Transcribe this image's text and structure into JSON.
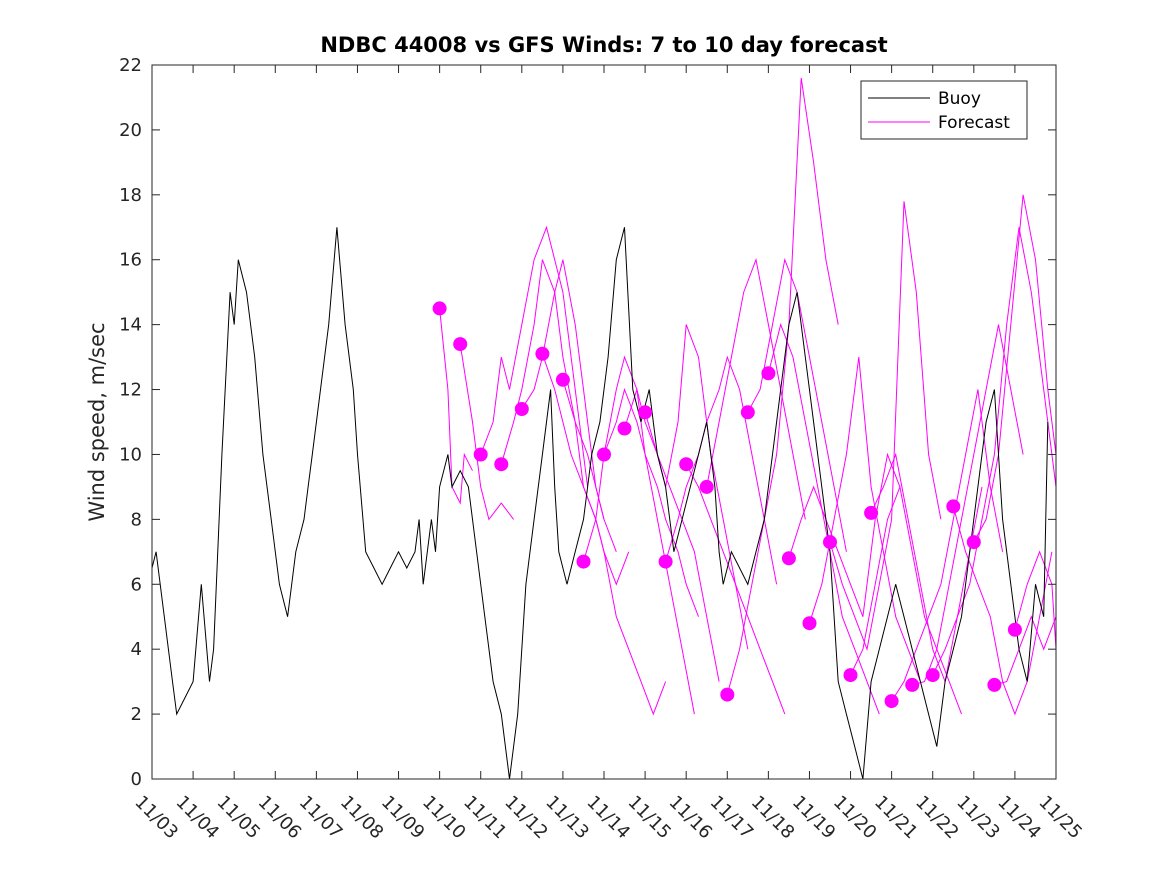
{
  "chart_data": {
    "type": "line",
    "title": "NDBC 44008 vs GFS Winds: 7 to 10 day forecast",
    "xlabel": "",
    "ylabel": "Wind speed, m/sec",
    "ylim": [
      0,
      22
    ],
    "xlim": [
      0,
      22
    ],
    "y_ticks": [
      0,
      2,
      4,
      6,
      8,
      10,
      12,
      14,
      16,
      18,
      20,
      22
    ],
    "x_ticks": [
      0,
      1,
      2,
      3,
      4,
      5,
      6,
      7,
      8,
      9,
      10,
      11,
      12,
      13,
      14,
      15,
      16,
      17,
      18,
      19,
      20,
      21,
      22
    ],
    "x_tick_labels": [
      "11/03",
      "11/04",
      "11/05",
      "11/06",
      "11/07",
      "11/08",
      "11/09",
      "11/10",
      "11/11",
      "11/12",
      "11/13",
      "11/14",
      "11/15",
      "11/16",
      "11/17",
      "11/18",
      "11/19",
      "11/20",
      "11/21",
      "11/22",
      "11/23",
      "11/24",
      "11/25"
    ],
    "colors": {
      "buoy": "#000000",
      "forecast": "#ff00ff",
      "axes": "#262626"
    },
    "legend": {
      "placement": "top-right",
      "entries": [
        "Buoy",
        "Forecast"
      ]
    },
    "series": [
      {
        "name": "Buoy",
        "x": [
          0,
          0.1,
          0.2,
          0.3,
          0.4,
          0.5,
          0.6,
          0.8,
          1.0,
          1.2,
          1.4,
          1.5,
          1.7,
          1.9,
          2.0,
          2.1,
          2.3,
          2.5,
          2.7,
          2.9,
          3.1,
          3.3,
          3.5,
          3.7,
          3.8,
          3.9,
          4.1,
          4.3,
          4.5,
          4.7,
          4.9,
          5.0,
          5.2,
          5.4,
          5.6,
          5.8,
          6.0,
          6.2,
          6.4,
          6.5,
          6.6,
          6.8,
          6.9,
          7.0,
          7.2,
          7.3,
          7.5,
          7.7,
          7.9,
          8.1,
          8.3,
          8.5,
          8.7,
          8.9,
          9.0,
          9.1,
          9.3,
          9.5,
          9.7,
          9.8,
          9.9,
          10.1,
          10.3,
          10.5,
          10.7,
          10.9,
          11.1,
          11.3,
          11.5,
          11.7,
          11.9,
          12.1,
          12.3,
          12.5,
          12.7,
          12.9,
          13.1,
          13.3,
          13.5,
          13.7,
          13.8,
          13.9,
          14.1,
          14.3,
          14.5,
          14.7,
          14.9,
          15.1,
          15.3,
          15.5,
          15.7,
          15.9,
          16.1,
          16.3,
          16.5,
          16.6,
          16.7,
          16.9,
          17.1,
          17.3,
          17.5,
          17.7,
          17.9,
          18.1,
          18.3,
          18.5,
          18.7,
          18.9,
          19.1,
          19.3,
          19.5,
          19.7,
          19.9,
          20.1,
          20.3,
          20.5,
          20.7,
          20.9,
          21.1,
          21.3,
          21.5,
          21.7,
          21.8
        ],
        "y": [
          6.5,
          7,
          6,
          5,
          4,
          3,
          2,
          2.5,
          3,
          6,
          3,
          4,
          10,
          15,
          14,
          16,
          15,
          13,
          10,
          8,
          6,
          5,
          7,
          8,
          9,
          10,
          12,
          14,
          17,
          14,
          12,
          10,
          7,
          6.5,
          6,
          6.5,
          7,
          6.5,
          7,
          8,
          6,
          8,
          7,
          9,
          10,
          9,
          9.5,
          9,
          7,
          5,
          3,
          2,
          0,
          2,
          4,
          6,
          8,
          10,
          12,
          9,
          7,
          6,
          7,
          8,
          10,
          11,
          13,
          16,
          17,
          12,
          11,
          12,
          10,
          9,
          7,
          8,
          9,
          10,
          11,
          9,
          7,
          6,
          7,
          6.5,
          6,
          7,
          8,
          10,
          12,
          14,
          15,
          13,
          11,
          9,
          7,
          5,
          3,
          2,
          1,
          0,
          3,
          4,
          5,
          6,
          5,
          4,
          3,
          2,
          1,
          3,
          4,
          5,
          7,
          9,
          11,
          12,
          8,
          6,
          4,
          3,
          6,
          5,
          11
        ]
      },
      {
        "name": "Forecast",
        "runs": [
          {
            "x": [
              7.0,
              7.2,
              7.3,
              7.5,
              7.6,
              7.8
            ],
            "y": [
              14.5,
              12,
              9,
              8.5,
              10,
              9.5
            ]
          },
          {
            "x": [
              7.5,
              7.8,
              8.0,
              8.2,
              8.5,
              8.8
            ],
            "y": [
              13.4,
              11,
              9,
              8,
              8.5,
              8
            ]
          },
          {
            "x": [
              8.0,
              8.3,
              8.5,
              8.7,
              9.0,
              9.3,
              9.6,
              10.0,
              10.3,
              10.6
            ],
            "y": [
              10,
              11,
              13,
              12,
              14,
              16,
              17,
              15,
              12,
              9
            ]
          },
          {
            "x": [
              8.5,
              8.8,
              9.0,
              9.3,
              9.5,
              9.8,
              10.0,
              10.3,
              10.6,
              11.0
            ],
            "y": [
              9.7,
              11,
              12,
              14,
              16,
              15,
              13,
              11,
              10,
              8
            ]
          },
          {
            "x": [
              9.0,
              9.3,
              9.5,
              9.8,
              10.0,
              10.3,
              10.5,
              10.8,
              11.0,
              11.3
            ],
            "y": [
              11.4,
              12,
              13,
              15,
              16,
              14,
              12,
              9,
              8,
              7
            ]
          },
          {
            "x": [
              9.5,
              9.8,
              10.0,
              10.2,
              10.5,
              10.8,
              11.0,
              11.3,
              11.6
            ],
            "y": [
              13.1,
              12,
              11,
              10,
              9,
              8,
              7,
              6,
              7
            ]
          },
          {
            "x": [
              10.0,
              10.3,
              10.5,
              10.8,
              11.0,
              11.3,
              11.6,
              11.9,
              12.2,
              12.5
            ],
            "y": [
              12.3,
              11,
              9,
              8,
              7,
              5,
              4,
              3,
              2,
              3
            ]
          },
          {
            "x": [
              10.5,
              10.8,
              11.0,
              11.3,
              11.5,
              11.8,
              12.0,
              12.3,
              12.6,
              12.9,
              13.2
            ],
            "y": [
              6.7,
              8,
              10,
              12,
              13,
              12,
              10,
              8,
              6,
              4,
              2
            ]
          },
          {
            "x": [
              11.0,
              11.3,
              11.5,
              11.8,
              12.0,
              12.3,
              12.5,
              12.8,
              13.0,
              13.3
            ],
            "y": [
              10,
              11,
              12,
              11,
              10,
              9,
              8,
              7,
              6,
              5
            ]
          },
          {
            "x": [
              11.5,
              11.8,
              12.0,
              12.3,
              12.6,
              12.9,
              13.2,
              13.5,
              13.8
            ],
            "y": [
              10.8,
              12,
              11,
              10,
              9,
              8,
              7,
              5,
              3
            ]
          },
          {
            "x": [
              12.0,
              12.3,
              12.5,
              12.8,
              13.0,
              13.3,
              13.6,
              13.9,
              14.2,
              14.5
            ],
            "y": [
              11.3,
              10,
              9,
              11,
              14,
              13,
              10,
              8,
              6,
              4
            ]
          },
          {
            "x": [
              12.5,
              12.8,
              13.0,
              13.3,
              13.5,
              13.8,
              14.0,
              14.3,
              14.6,
              14.9,
              15.2
            ],
            "y": [
              6.7,
              8,
              9,
              10,
              11,
              12,
              13,
              12,
              10,
              8,
              6
            ]
          },
          {
            "x": [
              13.0,
              13.3,
              13.6,
              13.9,
              14.2,
              14.5,
              14.8,
              15.1,
              15.4
            ],
            "y": [
              9.7,
              9,
              8,
              7,
              6,
              5,
              4,
              3,
              2
            ]
          },
          {
            "x": [
              13.5,
              13.8,
              14.1,
              14.4,
              14.7,
              15.0,
              15.3,
              15.6,
              15.9
            ],
            "y": [
              9,
              11,
              13,
              15,
              16,
              14,
              12,
              10,
              8
            ]
          },
          {
            "x": [
              14.0,
              14.3,
              14.6,
              14.9,
              15.2,
              15.5,
              15.8,
              16.1,
              16.4,
              16.7
            ],
            "y": [
              2.6,
              4,
              6,
              8,
              10,
              14,
              21.6,
              19,
              16,
              14
            ]
          },
          {
            "x": [
              14.5,
              14.8,
              15.1,
              15.4,
              15.7,
              16.0,
              16.3,
              16.6,
              16.9
            ],
            "y": [
              11.3,
              12,
              14,
              16,
              15,
              13,
              11,
              9,
              7
            ]
          },
          {
            "x": [
              15.0,
              15.3,
              15.6,
              15.9,
              16.2,
              16.5,
              16.8,
              17.1,
              17.4,
              17.7
            ],
            "y": [
              12.5,
              14,
              13,
              11,
              9,
              7,
              5,
              4,
              3,
              2
            ]
          },
          {
            "x": [
              15.5,
              15.8,
              16.1,
              16.4,
              16.7,
              17.0,
              17.3,
              17.6,
              17.9,
              18.2
            ],
            "y": [
              6.8,
              8,
              9,
              8,
              7,
              6,
              5,
              8,
              10,
              9
            ]
          },
          {
            "x": [
              16.0,
              16.3,
              16.6,
              16.9,
              17.2,
              17.5,
              17.8,
              18.1,
              18.4,
              18.7
            ],
            "y": [
              4.8,
              6,
              8,
              10,
              13,
              9,
              7,
              5,
              4,
              3
            ]
          },
          {
            "x": [
              16.5,
              16.8,
              17.1,
              17.4,
              17.7,
              18.0,
              18.3,
              18.6,
              18.9,
              19.2
            ],
            "y": [
              7.3,
              6,
              5,
              4,
              6,
              8,
              17.8,
              15,
              10,
              8
            ]
          },
          {
            "x": [
              17.0,
              17.3,
              17.6,
              17.9,
              18.2,
              18.5,
              18.8,
              19.1,
              19.4,
              19.7
            ],
            "y": [
              3.2,
              4,
              6,
              8,
              9,
              7,
              5,
              4,
              3,
              2
            ]
          },
          {
            "x": [
              17.5,
              17.8,
              18.1,
              18.4,
              18.7,
              19.0,
              19.3,
              19.6,
              19.9,
              20.2
            ],
            "y": [
              8.2,
              9,
              10,
              8,
              6,
              4,
              3,
              5,
              7,
              9
            ]
          },
          {
            "x": [
              18.0,
              18.3,
              18.6,
              18.9,
              19.2,
              19.5,
              19.8,
              20.1,
              20.4,
              20.7
            ],
            "y": [
              2.4,
              3,
              4,
              5,
              6,
              8,
              10,
              12,
              9,
              7
            ]
          },
          {
            "x": [
              18.5,
              18.8,
              19.1,
              19.4,
              19.7,
              20.0,
              20.3,
              20.6,
              20.9,
              21.2
            ],
            "y": [
              2.9,
              3,
              4,
              6,
              8,
              10,
              12,
              14,
              12,
              10
            ]
          },
          {
            "x": [
              19.0,
              19.3,
              19.6,
              19.9,
              20.2,
              20.5,
              20.8,
              21.1,
              21.4,
              21.7,
              22.0
            ],
            "y": [
              3.2,
              4,
              5,
              6,
              8,
              10,
              14,
              17,
              15,
              12,
              9
            ]
          },
          {
            "x": [
              19.5,
              19.8,
              20.1,
              20.4,
              20.7,
              21.0,
              21.3,
              21.6,
              21.9
            ],
            "y": [
              8.4,
              7,
              6,
              5,
              3,
              2,
              3,
              5,
              7
            ]
          },
          {
            "x": [
              20.0,
              20.3,
              20.6,
              20.9,
              21.2,
              21.5,
              21.8,
              22.0
            ],
            "y": [
              7.3,
              8,
              10,
              14,
              18,
              16,
              12,
              10
            ]
          },
          {
            "x": [
              20.5,
              20.8,
              21.1,
              21.4,
              21.7,
              22.0
            ],
            "y": [
              2.9,
              3,
              4,
              5,
              4,
              5
            ]
          },
          {
            "x": [
              21.0,
              21.3,
              21.6,
              21.9,
              22.0
            ],
            "y": [
              4.6,
              6,
              7,
              6,
              4
            ]
          }
        ],
        "markers": [
          {
            "x": 7.0,
            "y": 14.5
          },
          {
            "x": 7.5,
            "y": 13.4
          },
          {
            "x": 8.0,
            "y": 10
          },
          {
            "x": 8.5,
            "y": 9.7
          },
          {
            "x": 9.0,
            "y": 11.4
          },
          {
            "x": 9.5,
            "y": 13.1
          },
          {
            "x": 10.0,
            "y": 12.3
          },
          {
            "x": 10.5,
            "y": 6.7
          },
          {
            "x": 11.0,
            "y": 10
          },
          {
            "x": 11.5,
            "y": 10.8
          },
          {
            "x": 12.0,
            "y": 11.3
          },
          {
            "x": 12.5,
            "y": 6.7
          },
          {
            "x": 13.0,
            "y": 9.7
          },
          {
            "x": 13.5,
            "y": 9
          },
          {
            "x": 14.0,
            "y": 2.6
          },
          {
            "x": 14.5,
            "y": 11.3
          },
          {
            "x": 15.0,
            "y": 12.5
          },
          {
            "x": 15.5,
            "y": 6.8
          },
          {
            "x": 16.0,
            "y": 4.8
          },
          {
            "x": 16.5,
            "y": 7.3
          },
          {
            "x": 17.0,
            "y": 3.2
          },
          {
            "x": 17.5,
            "y": 8.2
          },
          {
            "x": 18.0,
            "y": 2.4
          },
          {
            "x": 18.5,
            "y": 2.9
          },
          {
            "x": 19.0,
            "y": 3.2
          },
          {
            "x": 19.5,
            "y": 8.4
          },
          {
            "x": 20.0,
            "y": 7.3
          },
          {
            "x": 20.5,
            "y": 2.9
          },
          {
            "x": 21.0,
            "y": 4.6
          }
        ]
      }
    ]
  }
}
